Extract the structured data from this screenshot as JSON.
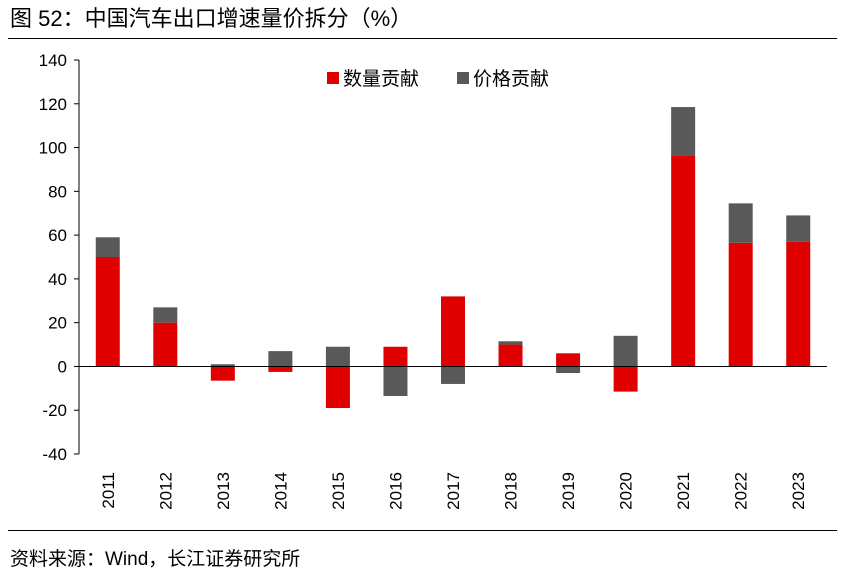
{
  "title": "图 52：中国汽车出口增速量价拆分（%）",
  "source": "资料来源：Wind，长江证券研究所",
  "chart_data": {
    "type": "bar",
    "stacked": true,
    "categories": [
      "2011",
      "2012",
      "2013",
      "2014",
      "2015",
      "2016",
      "2017",
      "2018",
      "2019",
      "2020",
      "2021",
      "2022",
      "2023"
    ],
    "series": [
      {
        "name": "数量贡献",
        "color": "#e00000",
        "values": [
          50,
          20,
          -6.5,
          -2.5,
          -19,
          9,
          32,
          10,
          6,
          -11.5,
          96.5,
          56.5,
          57
        ]
      },
      {
        "name": "价格贡献",
        "color": "#595959",
        "values": [
          9,
          7,
          1,
          7,
          9,
          -13.5,
          -8,
          1.5,
          -3,
          14,
          22,
          18,
          12
        ]
      }
    ],
    "ylim": [
      -40,
      140
    ],
    "yticks": [
      "140",
      "120",
      "100",
      "80",
      "60",
      "40",
      "20",
      "0",
      "-20",
      "-40"
    ],
    "legend_position": "top-center",
    "grid": false
  }
}
